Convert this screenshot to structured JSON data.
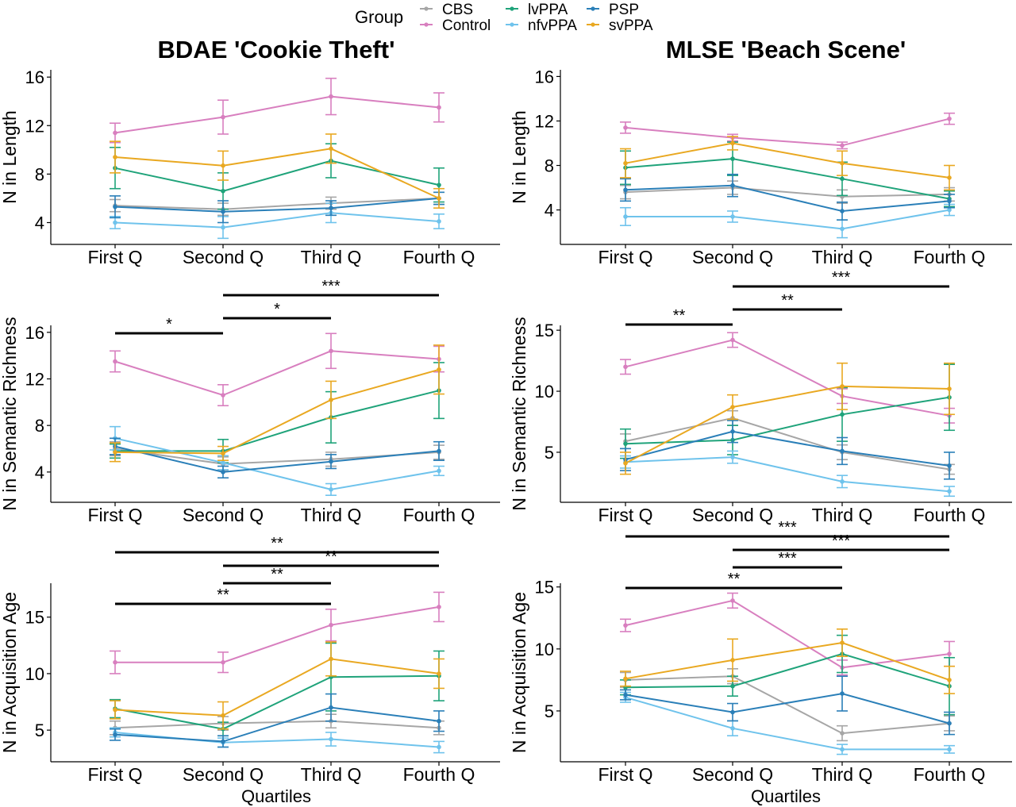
{
  "legend": {
    "title": "Group",
    "entries": [
      {
        "name": "CBS",
        "color": "#a6a6a6"
      },
      {
        "name": "Control",
        "color": "#d87fbf"
      },
      {
        "name": "lvPPA",
        "color": "#1fa37a"
      },
      {
        "name": "nfvPPA",
        "color": "#6fc3ec"
      },
      {
        "name": "PSP",
        "color": "#2a7fb8"
      },
      {
        "name": "svPPA",
        "color": "#e9a821"
      }
    ]
  },
  "columns": [
    {
      "title": "BDAE 'Cookie Theft'"
    },
    {
      "title": "MLSE 'Beach Scene'"
    }
  ],
  "xlabel": "Quartiles",
  "chart_data": [
    {
      "type": "line",
      "panel": "bdae-length",
      "categories": [
        "First Q",
        "Second Q",
        "Third Q",
        "Fourth Q"
      ],
      "ylabel": "N in Length",
      "ylim": [
        2.2,
        16.6
      ],
      "yticks": [
        4,
        8,
        12,
        16
      ],
      "series": [
        {
          "name": "CBS",
          "values": [
            5.4,
            5.1,
            5.6,
            6.0
          ],
          "err": [
            0.5,
            0.5,
            0.5,
            0.5
          ]
        },
        {
          "name": "Control",
          "values": [
            11.4,
            12.7,
            14.4,
            13.5
          ],
          "err": [
            0.8,
            1.4,
            1.5,
            1.2
          ]
        },
        {
          "name": "lvPPA",
          "values": [
            8.5,
            6.6,
            9.1,
            7.1
          ],
          "err": [
            1.7,
            1.5,
            1.4,
            1.4
          ]
        },
        {
          "name": "nfvPPA",
          "values": [
            4.0,
            3.6,
            4.8,
            4.1
          ],
          "err": [
            0.5,
            0.9,
            0.8,
            0.6
          ]
        },
        {
          "name": "PSP",
          "values": [
            5.3,
            4.9,
            5.2,
            6.0
          ],
          "err": [
            0.9,
            0.9,
            0.6,
            0.5
          ]
        },
        {
          "name": "svPPA",
          "values": [
            9.4,
            8.7,
            10.1,
            6.0
          ],
          "err": [
            1.3,
            1.2,
            1.2,
            0.8
          ]
        }
      ],
      "significance": []
    },
    {
      "type": "line",
      "panel": "mlse-length",
      "categories": [
        "First Q",
        "Second Q",
        "Third Q",
        "Fourth Q"
      ],
      "ylabel": "N in Length",
      "ylim": [
        0.9,
        16.6
      ],
      "yticks": [
        4,
        8,
        12,
        16
      ],
      "series": [
        {
          "name": "CBS",
          "values": [
            5.6,
            6.0,
            5.2,
            5.4
          ],
          "err": [
            0.6,
            0.6,
            0.6,
            0.6
          ]
        },
        {
          "name": "Control",
          "values": [
            11.4,
            10.5,
            9.8,
            12.2
          ],
          "err": [
            0.5,
            0.3,
            0.3,
            0.5
          ]
        },
        {
          "name": "lvPPA",
          "values": [
            7.8,
            8.6,
            6.8,
            5.0
          ],
          "err": [
            1.5,
            1.5,
            1.5,
            0.7
          ]
        },
        {
          "name": "nfvPPA",
          "values": [
            3.4,
            3.4,
            2.3,
            4.0
          ],
          "err": [
            0.8,
            0.5,
            0.8,
            0.5
          ]
        },
        {
          "name": "PSP",
          "values": [
            5.8,
            6.2,
            3.9,
            4.8
          ],
          "err": [
            1.0,
            1.0,
            0.8,
            0.6
          ]
        },
        {
          "name": "svPPA",
          "values": [
            8.2,
            10.0,
            8.2,
            6.9
          ],
          "err": [
            1.3,
            0.6,
            1.1,
            1.1
          ]
        }
      ],
      "significance": []
    },
    {
      "type": "line",
      "panel": "bdae-semantic",
      "categories": [
        "First Q",
        "Second Q",
        "Third Q",
        "Fourth Q"
      ],
      "ylabel": "N in Semantic Richness",
      "ylim": [
        1.4,
        16.6
      ],
      "yticks": [
        4,
        8,
        12,
        16
      ],
      "series": [
        {
          "name": "CBS",
          "values": [
            6.0,
            4.7,
            5.1,
            5.7
          ],
          "err": [
            0.6,
            0.6,
            0.6,
            0.6
          ]
        },
        {
          "name": "Control",
          "values": [
            13.5,
            10.6,
            14.4,
            13.7
          ],
          "err": [
            0.9,
            0.9,
            1.5,
            1.1
          ]
        },
        {
          "name": "lvPPA",
          "values": [
            5.8,
            5.8,
            8.7,
            11.0
          ],
          "err": [
            0.6,
            1.0,
            2.2,
            2.4
          ]
        },
        {
          "name": "nfvPPA",
          "values": [
            6.9,
            4.8,
            2.5,
            4.1
          ],
          "err": [
            1.0,
            0.6,
            0.5,
            0.4
          ]
        },
        {
          "name": "PSP",
          "values": [
            6.2,
            4.0,
            4.9,
            5.8
          ],
          "err": [
            0.7,
            0.5,
            0.6,
            0.8
          ]
        },
        {
          "name": "svPPA",
          "values": [
            5.7,
            5.6,
            10.2,
            12.8
          ],
          "err": [
            0.8,
            0.6,
            1.6,
            2.1
          ]
        }
      ],
      "significance": [
        {
          "label": "*",
          "from": 0,
          "to": 1
        },
        {
          "label": "*",
          "from": 1,
          "to": 2
        },
        {
          "label": "***",
          "from": 1,
          "to": 3
        }
      ]
    },
    {
      "type": "line",
      "panel": "mlse-semantic",
      "categories": [
        "First Q",
        "Second Q",
        "Third Q",
        "Fourth Q"
      ],
      "ylabel": "N in Semantic Richness",
      "ylim": [
        0.9,
        15.4
      ],
      "yticks": [
        5,
        10,
        15
      ],
      "series": [
        {
          "name": "CBS",
          "values": [
            5.9,
            7.8,
            5.0,
            3.6
          ],
          "err": [
            0.6,
            0.6,
            0.6,
            0.4
          ]
        },
        {
          "name": "Control",
          "values": [
            12.0,
            14.2,
            9.6,
            8.0
          ],
          "err": [
            0.6,
            0.6,
            0.6,
            0.6
          ]
        },
        {
          "name": "lvPPA",
          "values": [
            5.7,
            6.0,
            8.1,
            9.5
          ],
          "err": [
            1.2,
            1.2,
            2.2,
            2.7
          ]
        },
        {
          "name": "nfvPPA",
          "values": [
            4.2,
            4.6,
            2.6,
            1.8
          ],
          "err": [
            0.5,
            0.5,
            0.5,
            0.4
          ]
        },
        {
          "name": "PSP",
          "values": [
            4.4,
            6.7,
            5.1,
            3.9
          ],
          "err": [
            0.9,
            0.9,
            1.1,
            1.1
          ]
        },
        {
          "name": "svPPA",
          "values": [
            4.1,
            8.7,
            10.4,
            10.2
          ],
          "err": [
            0.9,
            1.0,
            1.9,
            2.1
          ]
        }
      ],
      "significance": [
        {
          "label": "**",
          "from": 0,
          "to": 1
        },
        {
          "label": "**",
          "from": 1,
          "to": 2
        },
        {
          "label": "***",
          "from": 1,
          "to": 3
        }
      ]
    },
    {
      "type": "line",
      "panel": "bdae-acquisition",
      "categories": [
        "First Q",
        "Second Q",
        "Third Q",
        "Fourth Q"
      ],
      "ylabel": "N in Acquisition Age",
      "ylim": [
        2.2,
        18.0
      ],
      "yticks": [
        5,
        10,
        15
      ],
      "series": [
        {
          "name": "CBS",
          "values": [
            5.2,
            5.6,
            5.8,
            5.2
          ],
          "err": [
            0.6,
            0.6,
            0.6,
            0.6
          ]
        },
        {
          "name": "Control",
          "values": [
            11.0,
            11.0,
            14.3,
            15.9
          ],
          "err": [
            1.0,
            0.9,
            1.4,
            1.3
          ]
        },
        {
          "name": "lvPPA",
          "values": [
            6.9,
            5.1,
            9.7,
            9.8
          ],
          "err": [
            0.8,
            0.6,
            3.0,
            2.2
          ]
        },
        {
          "name": "nfvPPA",
          "values": [
            4.8,
            3.9,
            4.2,
            3.5
          ],
          "err": [
            0.4,
            0.4,
            0.6,
            0.5
          ]
        },
        {
          "name": "PSP",
          "values": [
            4.6,
            4.0,
            7.0,
            5.8
          ],
          "err": [
            0.5,
            0.5,
            1.2,
            0.9
          ]
        },
        {
          "name": "svPPA",
          "values": [
            6.8,
            6.3,
            11.3,
            10.0
          ],
          "err": [
            0.8,
            1.2,
            1.5,
            1.3
          ]
        }
      ],
      "significance": [
        {
          "label": "**",
          "from": 0,
          "to": 2
        },
        {
          "label": "**",
          "from": 1,
          "to": 2
        },
        {
          "label": "**",
          "from": 1,
          "to": 3
        },
        {
          "label": "**",
          "from": 0,
          "to": 3
        }
      ]
    },
    {
      "type": "line",
      "panel": "mlse-acquisition",
      "categories": [
        "First Q",
        "Second Q",
        "Third Q",
        "Fourth Q"
      ],
      "ylabel": "N in Acquisition Age",
      "ylim": [
        0.9,
        15.3
      ],
      "yticks": [
        5,
        10,
        15
      ],
      "series": [
        {
          "name": "CBS",
          "values": [
            7.5,
            7.8,
            3.2,
            4.0
          ],
          "err": [
            0.6,
            0.6,
            0.6,
            0.6
          ]
        },
        {
          "name": "Control",
          "values": [
            11.9,
            13.9,
            8.5,
            9.6
          ],
          "err": [
            0.5,
            0.6,
            0.6,
            1.0
          ]
        },
        {
          "name": "lvPPA",
          "values": [
            6.9,
            7.0,
            9.6,
            7.0
          ],
          "err": [
            0.6,
            0.8,
            1.5,
            2.3
          ]
        },
        {
          "name": "nfvPPA",
          "values": [
            6.1,
            3.6,
            1.9,
            1.9
          ],
          "err": [
            0.4,
            0.6,
            0.4,
            0.3
          ]
        },
        {
          "name": "PSP",
          "values": [
            6.3,
            4.9,
            6.4,
            4.0
          ],
          "err": [
            0.4,
            0.7,
            1.4,
            0.9
          ]
        },
        {
          "name": "svPPA",
          "values": [
            7.6,
            9.1,
            10.5,
            7.5
          ],
          "err": [
            0.6,
            1.7,
            1.1,
            1.1
          ]
        }
      ],
      "significance": [
        {
          "label": "**",
          "from": 0,
          "to": 2
        },
        {
          "label": "***",
          "from": 1,
          "to": 2
        },
        {
          "label": "***",
          "from": 1,
          "to": 3
        },
        {
          "label": "***",
          "from": 0,
          "to": 3
        }
      ]
    }
  ]
}
